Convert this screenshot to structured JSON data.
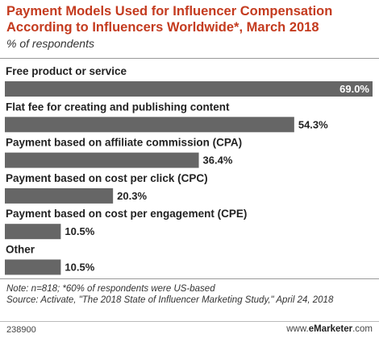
{
  "title": "Payment Models Used for Influencer Compensation According to Influencers Worldwide*, March 2018",
  "subtitle": "% of respondents",
  "chart_data": {
    "type": "bar",
    "orientation": "horizontal",
    "title": "Payment Models Used for Influencer Compensation According to Influencers Worldwide*, March 2018",
    "subtitle": "% of respondents",
    "categories": [
      "Free product or service",
      "Flat fee for creating and publishing content",
      "Payment based on affiliate commission (CPA)",
      "Payment based on cost per click (CPC)",
      "Payment based on cost per engagement (CPE)",
      "Other"
    ],
    "values": [
      69.0,
      54.3,
      36.4,
      20.3,
      10.5,
      10.5
    ],
    "value_labels": [
      "69.0%",
      "54.3%",
      "36.4%",
      "20.3%",
      "10.5%",
      "10.5%"
    ],
    "xlim": [
      0,
      69.0
    ],
    "grid": false,
    "legend": "none",
    "bar_color": "#666666"
  },
  "note": "Note: n=818; *60% of respondents were US-based",
  "source": "Source: Activate, \"The 2018 State of Influencer Marketing Study,\" April 24, 2018",
  "footer": {
    "chart_id": "238900",
    "brand_prefix": "www.",
    "brand_name": "eMarketer",
    "brand_suffix": ".com"
  }
}
